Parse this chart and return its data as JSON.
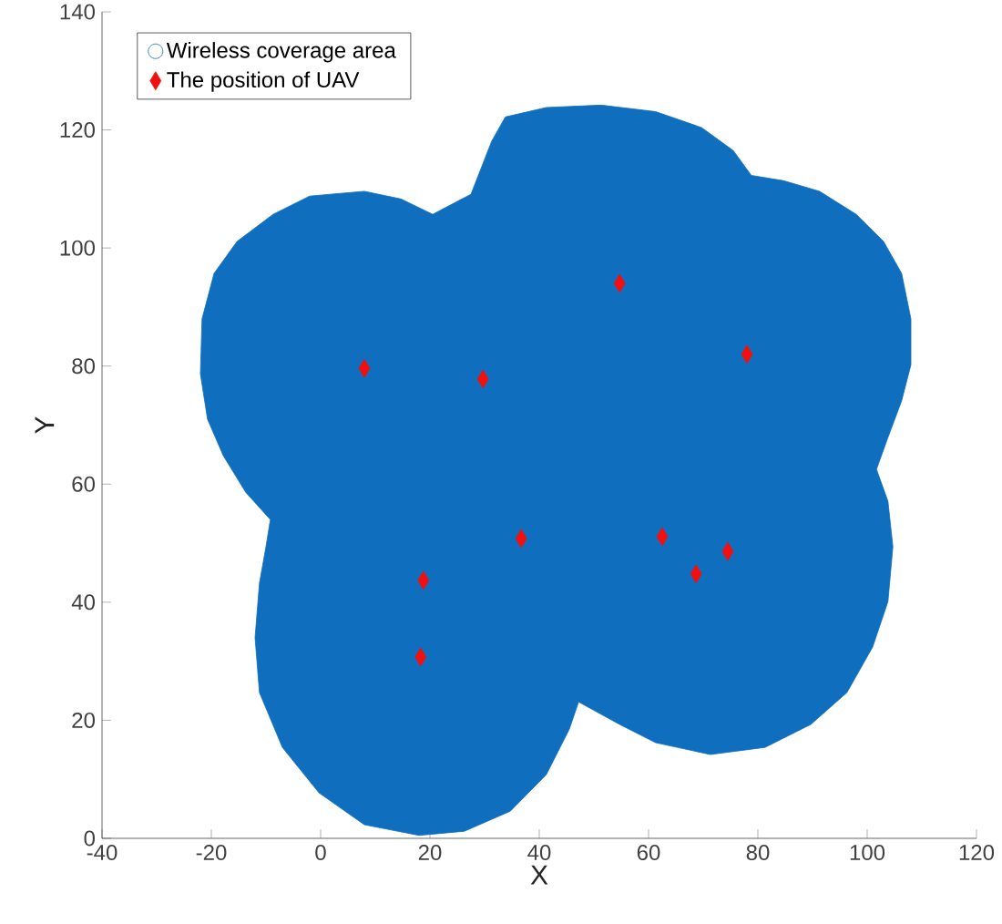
{
  "chart_data": {
    "type": "scatter",
    "xlabel": "X",
    "ylabel": "Y",
    "xlim": [
      -40,
      120
    ],
    "xticks": [
      -40,
      -20,
      0,
      20,
      40,
      60,
      80,
      100,
      120
    ],
    "ylim": [
      0,
      140
    ],
    "yticks": [
      0,
      20,
      40,
      60,
      80,
      100,
      120,
      140
    ],
    "legend": "top left",
    "grid": false,
    "series": [
      {
        "name": "Wireless coverage area",
        "type": "area",
        "color": "#0f6fbe",
        "x": [
          33.8,
          41.3,
          51.3,
          61.3,
          69.7,
          75.5,
          78.8,
          84.7,
          91.3,
          98.0,
          103.0,
          106.3,
          108.0,
          108.0,
          106.3,
          103.8,
          101.7,
          103.8,
          104.7,
          103.8,
          101.0,
          96.3,
          89.7,
          81.3,
          71.3,
          61.3,
          54.7,
          47.2,
          45.5,
          41.3,
          34.7,
          26.3,
          18.0,
          8.0,
          -0.3,
          -7.0,
          -11.2,
          -12.0,
          -11.2,
          -10.0,
          -9.2,
          -13.7,
          -17.8,
          -20.7,
          -22.0,
          -21.7,
          -19.5,
          -15.3,
          -8.7,
          -2.0,
          8.0,
          14.7,
          20.5,
          27.5,
          31.3,
          33.8
        ],
        "values": [
          122.2,
          123.8,
          124.2,
          123.1,
          120.4,
          116.5,
          112.3,
          111.4,
          109.6,
          105.7,
          101.1,
          95.7,
          88.0,
          80.2,
          74.1,
          67.9,
          62.5,
          57.1,
          49.4,
          40.1,
          32.4,
          24.7,
          19.3,
          15.4,
          14.2,
          16.2,
          19.3,
          23.1,
          18.5,
          10.8,
          4.6,
          1.2,
          0.5,
          2.3,
          7.7,
          15.4,
          24.7,
          34.0,
          43.2,
          49.4,
          54.0,
          58.6,
          64.8,
          71.0,
          78.7,
          88.0,
          95.7,
          101.1,
          105.7,
          108.8,
          109.6,
          108.3,
          105.7,
          109.1,
          118.1,
          122.2
        ]
      },
      {
        "name": "The position of UAV",
        "marker": "diamond",
        "color": "#f01010",
        "x": [
          8.0,
          29.7,
          54.7,
          78.0,
          36.7,
          62.5,
          68.7,
          74.5,
          18.8,
          18.3
        ],
        "values": [
          79.6,
          77.8,
          94.0,
          82.0,
          50.8,
          51.1,
          44.8,
          48.6,
          43.7,
          30.7
        ]
      }
    ]
  }
}
